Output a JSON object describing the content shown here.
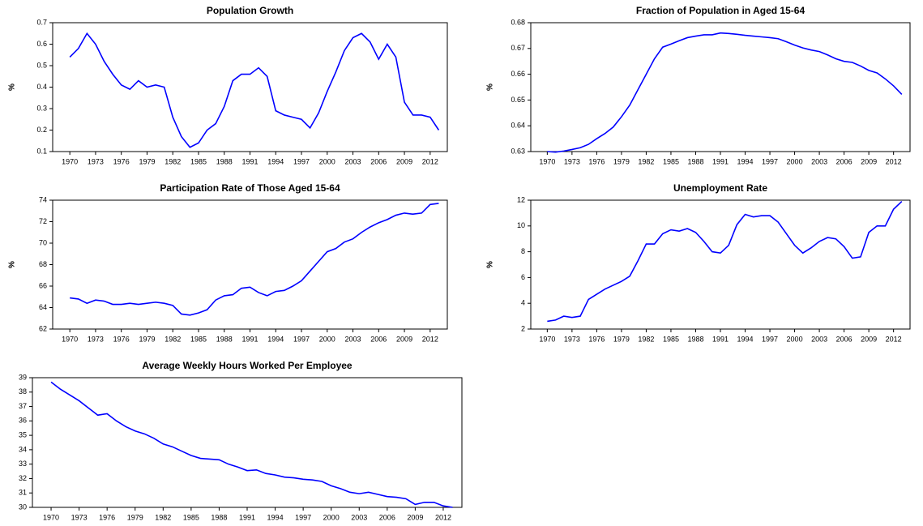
{
  "chart_data": [
    {
      "type": "line",
      "title": "Population Growth",
      "ylabel": "%",
      "color": "#0000ff",
      "grid": false,
      "x": [
        1970,
        1971,
        1972,
        1973,
        1974,
        1975,
        1976,
        1977,
        1978,
        1979,
        1980,
        1981,
        1982,
        1983,
        1984,
        1985,
        1986,
        1987,
        1988,
        1989,
        1990,
        1991,
        1992,
        1993,
        1994,
        1995,
        1996,
        1997,
        1998,
        1999,
        2000,
        2001,
        2002,
        2003,
        2004,
        2005,
        2006,
        2007,
        2008,
        2009,
        2010,
        2011,
        2012,
        2013
      ],
      "values": [
        0.54,
        0.58,
        0.65,
        0.6,
        0.52,
        0.46,
        0.41,
        0.39,
        0.43,
        0.4,
        0.41,
        0.4,
        0.26,
        0.17,
        0.12,
        0.14,
        0.2,
        0.23,
        0.31,
        0.43,
        0.46,
        0.46,
        0.49,
        0.45,
        0.29,
        0.27,
        0.26,
        0.25,
        0.21,
        0.28,
        0.38,
        0.47,
        0.57,
        0.63,
        0.65,
        0.61,
        0.53,
        0.6,
        0.54,
        0.33,
        0.27,
        0.27,
        0.26,
        0.2
      ],
      "xlim": [
        1968,
        2014
      ],
      "xticks": [
        1970,
        1973,
        1976,
        1979,
        1982,
        1985,
        1988,
        1991,
        1994,
        1997,
        2000,
        2003,
        2006,
        2009,
        2012
      ],
      "ylim": [
        0.1,
        0.7
      ],
      "yticks": [
        0.1,
        0.2,
        0.3,
        0.4,
        0.5,
        0.6,
        0.7
      ]
    },
    {
      "type": "line",
      "title": "Fraction of Population in Aged 15-64",
      "ylabel": "%",
      "color": "#0000ff",
      "grid": false,
      "x": [
        1970,
        1971,
        1972,
        1973,
        1974,
        1975,
        1976,
        1977,
        1978,
        1979,
        1980,
        1981,
        1982,
        1983,
        1984,
        1985,
        1986,
        1987,
        1988,
        1989,
        1990,
        1991,
        1992,
        1993,
        1994,
        1995,
        1996,
        1997,
        1998,
        1999,
        2000,
        2001,
        2002,
        2003,
        2004,
        2005,
        2006,
        2007,
        2008,
        2009,
        2010,
        2011,
        2012,
        2013
      ],
      "values": [
        0.63,
        0.6298,
        0.6302,
        0.6308,
        0.6315,
        0.6328,
        0.635,
        0.637,
        0.6395,
        0.6435,
        0.648,
        0.654,
        0.66,
        0.666,
        0.6705,
        0.6717,
        0.673,
        0.6742,
        0.6748,
        0.6753,
        0.6753,
        0.676,
        0.6758,
        0.6755,
        0.6751,
        0.6748,
        0.6745,
        0.6742,
        0.6738,
        0.6726,
        0.6713,
        0.6702,
        0.6694,
        0.6688,
        0.6675,
        0.666,
        0.665,
        0.6646,
        0.6632,
        0.6615,
        0.6605,
        0.6582,
        0.6555,
        0.6522
      ],
      "xlim": [
        1968,
        2014
      ],
      "xticks": [
        1970,
        1973,
        1976,
        1979,
        1982,
        1985,
        1988,
        1991,
        1994,
        1997,
        2000,
        2003,
        2006,
        2009,
        2012
      ],
      "ylim": [
        0.63,
        0.68
      ],
      "yticks": [
        0.63,
        0.64,
        0.65,
        0.66,
        0.67,
        0.68
      ]
    },
    {
      "type": "line",
      "title": "Participation Rate of Those Aged 15-64",
      "ylabel": "%",
      "color": "#0000ff",
      "grid": false,
      "x": [
        1970,
        1971,
        1972,
        1973,
        1974,
        1975,
        1976,
        1977,
        1978,
        1979,
        1980,
        1981,
        1982,
        1983,
        1984,
        1985,
        1986,
        1987,
        1988,
        1989,
        1990,
        1991,
        1992,
        1993,
        1994,
        1995,
        1996,
        1997,
        1998,
        1999,
        2000,
        2001,
        2002,
        2003,
        2004,
        2005,
        2006,
        2007,
        2008,
        2009,
        2010,
        2011,
        2012,
        2013
      ],
      "values": [
        64.9,
        64.8,
        64.4,
        64.7,
        64.6,
        64.3,
        64.3,
        64.4,
        64.3,
        64.4,
        64.5,
        64.4,
        64.2,
        63.4,
        63.3,
        63.5,
        63.8,
        64.7,
        65.1,
        65.2,
        65.8,
        65.9,
        65.4,
        65.1,
        65.5,
        65.6,
        66.0,
        66.5,
        67.4,
        68.3,
        69.2,
        69.5,
        70.1,
        70.4,
        71.0,
        71.5,
        71.9,
        72.2,
        72.6,
        72.8,
        72.7,
        72.8,
        73.6,
        73.7
      ],
      "xlim": [
        1968,
        2014
      ],
      "xticks": [
        1970,
        1973,
        1976,
        1979,
        1982,
        1985,
        1988,
        1991,
        1994,
        1997,
        2000,
        2003,
        2006,
        2009,
        2012
      ],
      "ylim": [
        62,
        74
      ],
      "yticks": [
        62,
        64,
        66,
        68,
        70,
        72,
        74
      ]
    },
    {
      "type": "line",
      "title": "Unemployment Rate",
      "ylabel": "%",
      "color": "#0000ff",
      "grid": false,
      "x": [
        1970,
        1971,
        1972,
        1973,
        1974,
        1975,
        1976,
        1977,
        1978,
        1979,
        1980,
        1981,
        1982,
        1983,
        1984,
        1985,
        1986,
        1987,
        1988,
        1989,
        1990,
        1991,
        1992,
        1993,
        1994,
        1995,
        1996,
        1997,
        1998,
        1999,
        2000,
        2001,
        2002,
        2003,
        2004,
        2005,
        2006,
        2007,
        2008,
        2009,
        2010,
        2011,
        2012,
        2013
      ],
      "values": [
        2.6,
        2.7,
        3.0,
        2.9,
        3.0,
        4.3,
        4.7,
        5.1,
        5.4,
        5.7,
        6.1,
        7.3,
        8.6,
        8.6,
        9.4,
        9.7,
        9.6,
        9.8,
        9.5,
        8.8,
        8.0,
        7.9,
        8.5,
        10.1,
        10.9,
        10.7,
        10.8,
        10.8,
        10.3,
        9.4,
        8.5,
        7.9,
        8.3,
        8.8,
        9.1,
        9.0,
        8.4,
        7.5,
        7.6,
        9.5,
        10.0,
        10.0,
        11.3,
        11.9
      ],
      "xlim": [
        1968,
        2014
      ],
      "xticks": [
        1970,
        1973,
        1976,
        1979,
        1982,
        1985,
        1988,
        1991,
        1994,
        1997,
        2000,
        2003,
        2006,
        2009,
        2012
      ],
      "ylim": [
        2,
        12
      ],
      "yticks": [
        2,
        4,
        6,
        8,
        10,
        12
      ]
    },
    {
      "type": "line",
      "title": "Average Weekly Hours Worked Per Employee",
      "color": "#0000ff",
      "grid": false,
      "x": [
        1970,
        1971,
        1972,
        1973,
        1974,
        1975,
        1976,
        1977,
        1978,
        1979,
        1980,
        1981,
        1982,
        1983,
        1984,
        1985,
        1986,
        1987,
        1988,
        1989,
        1990,
        1991,
        1992,
        1993,
        1994,
        1995,
        1996,
        1997,
        1998,
        1999,
        2000,
        2001,
        2002,
        2003,
        2004,
        2005,
        2006,
        2007,
        2008,
        2009,
        2010,
        2011,
        2012,
        2013
      ],
      "values": [
        38.7,
        38.2,
        37.8,
        37.4,
        36.9,
        36.4,
        36.5,
        36.0,
        35.6,
        35.3,
        35.1,
        34.8,
        34.4,
        34.2,
        33.9,
        33.6,
        33.4,
        33.35,
        33.3,
        33.0,
        32.8,
        32.55,
        32.6,
        32.35,
        32.25,
        32.1,
        32.05,
        31.95,
        31.9,
        31.8,
        31.5,
        31.3,
        31.05,
        30.95,
        31.05,
        30.9,
        30.75,
        30.7,
        30.6,
        30.2,
        30.35,
        30.35,
        30.1,
        30.0
      ],
      "xlim": [
        1968,
        2014
      ],
      "xticks": [
        1970,
        1973,
        1976,
        1979,
        1982,
        1985,
        1988,
        1991,
        1994,
        1997,
        2000,
        2003,
        2006,
        2009,
        2012
      ],
      "ylim": [
        30,
        39
      ],
      "yticks": [
        30,
        31,
        32,
        33,
        34,
        35,
        36,
        37,
        38,
        39
      ]
    }
  ]
}
